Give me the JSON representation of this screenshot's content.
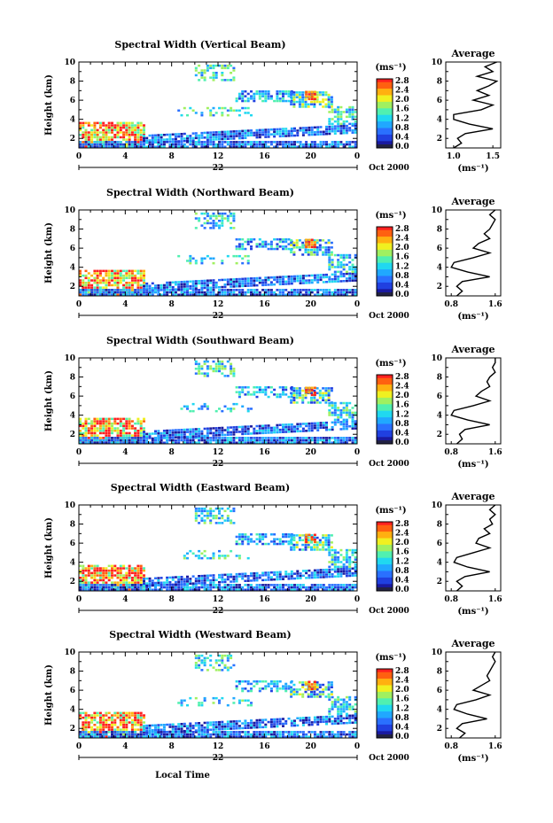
{
  "figure": {
    "x_axis_label": "Local Time",
    "unit_label": "(ms⁻¹)",
    "date_label": "Oct 2000",
    "day_label": "22",
    "colormap": [
      "#1a1aa0",
      "#2040e0",
      "#2a70ff",
      "#20a8ff",
      "#20d8f0",
      "#50f0b0",
      "#a0f060",
      "#f0f020",
      "#ffb010",
      "#ff6010",
      "#ff2020"
    ]
  },
  "chart_data": [
    {
      "type": "heatmap",
      "title": "Spectral Width (Vertical Beam)",
      "ylabel": "Height (km)",
      "xlim": [
        0,
        24
      ],
      "ylim": [
        1,
        10
      ],
      "xticks": [
        "0",
        "4",
        "8",
        "12",
        "16",
        "20",
        "0"
      ],
      "yticks": [
        "2",
        "4",
        "6",
        "8",
        "10"
      ],
      "colorbar": {
        "min": 0.0,
        "max": 2.8,
        "ticks": [
          "2.8",
          "2.4",
          "2.0",
          "1.6",
          "1.2",
          "0.8",
          "0.4",
          "0.0"
        ]
      },
      "profile": {
        "title": "Average",
        "xlabel": "(ms⁻¹)",
        "xticks": [
          "1.0",
          "1.5"
        ],
        "xlim": [
          0.9,
          1.6
        ],
        "heights": [
          1.0,
          1.5,
          2.0,
          2.5,
          3.0,
          3.5,
          4.0,
          4.5,
          5.0,
          5.5,
          6.0,
          6.5,
          7.0,
          7.5,
          8.0,
          8.5,
          9.0,
          9.5,
          10.0
        ],
        "values": [
          1.0,
          1.1,
          1.05,
          1.15,
          1.5,
          1.2,
          1.0,
          1.0,
          1.35,
          1.5,
          1.25,
          1.45,
          1.3,
          1.45,
          1.55,
          1.3,
          1.5,
          1.4,
          1.55
        ]
      }
    },
    {
      "type": "heatmap",
      "title": "Spectral Width (Northward Beam)",
      "ylabel": "Height (km)",
      "xlim": [
        0,
        24
      ],
      "ylim": [
        1,
        10
      ],
      "xticks": [
        "0",
        "4",
        "8",
        "12",
        "16",
        "20",
        "0"
      ],
      "yticks": [
        "2",
        "4",
        "6",
        "8",
        "10"
      ],
      "colorbar": {
        "min": 0.0,
        "max": 2.8,
        "ticks": [
          "2.8",
          "2.4",
          "2.0",
          "1.6",
          "1.2",
          "0.8",
          "0.4",
          "0.0"
        ]
      },
      "profile": {
        "title": "Average",
        "xlabel": "(ms⁻¹)",
        "xticks": [
          "0.8",
          "1.6"
        ],
        "xlim": [
          0.7,
          1.7
        ],
        "heights": [
          1.0,
          1.5,
          2.0,
          2.5,
          3.0,
          3.5,
          4.0,
          4.5,
          5.0,
          5.5,
          6.0,
          6.5,
          7.0,
          7.5,
          8.0,
          8.5,
          9.0,
          9.5,
          10.0
        ],
        "values": [
          0.9,
          1.0,
          0.9,
          1.0,
          1.5,
          1.1,
          0.8,
          0.85,
          1.2,
          1.5,
          1.2,
          1.3,
          1.5,
          1.4,
          1.5,
          1.55,
          1.6,
          1.5,
          1.6
        ]
      }
    },
    {
      "type": "heatmap",
      "title": "Spectral Width (Southward Beam)",
      "ylabel": "Height (km)",
      "xlim": [
        0,
        24
      ],
      "ylim": [
        1,
        10
      ],
      "xticks": [
        "0",
        "4",
        "8",
        "12",
        "16",
        "20",
        "0"
      ],
      "yticks": [
        "2",
        "4",
        "6",
        "8",
        "10"
      ],
      "colorbar": {
        "min": 0.0,
        "max": 2.8,
        "ticks": [
          "2.8",
          "2.4",
          "2.0",
          "1.6",
          "1.2",
          "0.8",
          "0.4",
          "0.0"
        ]
      },
      "profile": {
        "title": "Average",
        "xlabel": "(ms⁻¹)",
        "xticks": [
          "0.8",
          "1.6"
        ],
        "xlim": [
          0.7,
          1.7
        ],
        "heights": [
          1.0,
          1.5,
          2.0,
          2.5,
          3.0,
          3.5,
          4.0,
          4.5,
          5.0,
          5.5,
          6.0,
          6.5,
          7.0,
          7.5,
          8.0,
          8.5,
          9.0,
          9.5,
          10.0
        ],
        "values": [
          0.9,
          1.0,
          0.95,
          1.05,
          1.5,
          1.1,
          0.8,
          0.85,
          1.2,
          1.5,
          1.25,
          1.35,
          1.5,
          1.45,
          1.5,
          1.6,
          1.55,
          1.6,
          1.6
        ]
      }
    },
    {
      "type": "heatmap",
      "title": "Spectral Width (Eastward Beam)",
      "ylabel": "Height (km)",
      "xlim": [
        0,
        24
      ],
      "ylim": [
        1,
        10
      ],
      "xticks": [
        "0",
        "4",
        "8",
        "12",
        "16",
        "20",
        "0"
      ],
      "yticks": [
        "2",
        "4",
        "6",
        "8",
        "10"
      ],
      "colorbar": {
        "min": 0.0,
        "max": 2.8,
        "ticks": [
          "2.8",
          "2.4",
          "2.0",
          "1.6",
          "1.2",
          "0.8",
          "0.4",
          "0.0"
        ]
      },
      "profile": {
        "title": "Average",
        "xlabel": "(ms⁻¹)",
        "xticks": [
          "0.8",
          "1.6"
        ],
        "xlim": [
          0.7,
          1.7
        ],
        "heights": [
          1.0,
          1.5,
          2.0,
          2.5,
          3.0,
          3.5,
          4.0,
          4.5,
          5.0,
          5.5,
          6.0,
          6.5,
          7.0,
          7.5,
          8.0,
          8.5,
          9.0,
          9.5,
          10.0
        ],
        "values": [
          0.9,
          1.0,
          0.9,
          1.05,
          1.5,
          1.1,
          0.85,
          0.9,
          1.2,
          1.5,
          1.25,
          1.3,
          1.5,
          1.4,
          1.55,
          1.5,
          1.6,
          1.5,
          1.6
        ]
      }
    },
    {
      "type": "heatmap",
      "title": "Spectral Width (Westward Beam)",
      "ylabel": "Height (km)",
      "xlim": [
        0,
        24
      ],
      "ylim": [
        1,
        10
      ],
      "xticks": [
        "0",
        "4",
        "8",
        "12",
        "16",
        "20",
        "0"
      ],
      "yticks": [
        "2",
        "4",
        "6",
        "8",
        "10"
      ],
      "colorbar": {
        "min": 0.0,
        "max": 2.8,
        "ticks": [
          "2.8",
          "2.4",
          "2.0",
          "1.6",
          "1.2",
          "0.8",
          "0.4",
          "0.0"
        ]
      },
      "profile": {
        "title": "Average",
        "xlabel": "(ms⁻¹)",
        "xticks": [
          "0.8",
          "1.6"
        ],
        "xlim": [
          0.7,
          1.7
        ],
        "heights": [
          1.0,
          1.5,
          2.0,
          2.5,
          3.0,
          3.5,
          4.0,
          4.5,
          5.0,
          5.5,
          6.0,
          6.5,
          7.0,
          7.5,
          8.0,
          8.5,
          9.0,
          9.5,
          10.0
        ],
        "values": [
          0.95,
          1.05,
          0.9,
          1.0,
          1.45,
          1.1,
          0.85,
          0.9,
          1.25,
          1.5,
          1.2,
          1.35,
          1.5,
          1.45,
          1.5,
          1.55,
          1.6,
          1.55,
          1.6
        ]
      }
    }
  ]
}
